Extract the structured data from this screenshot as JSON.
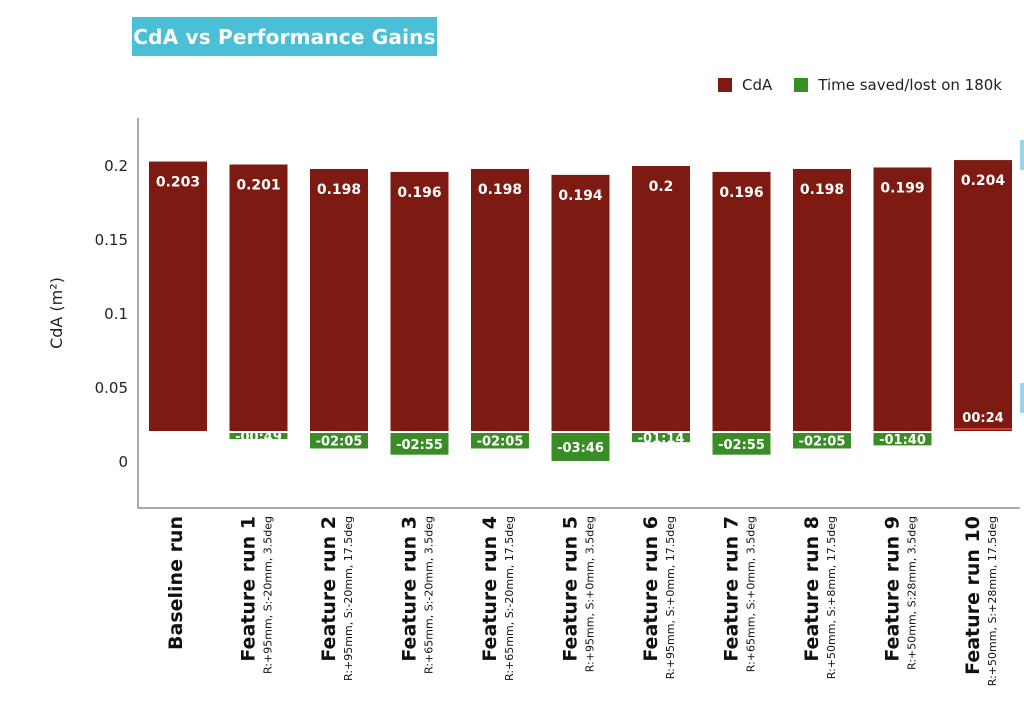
{
  "chart_data": {
    "type": "bar",
    "title": "CdA vs Performance Gains",
    "ylabel": "CdA (m²)",
    "ylim": [
      -0.03,
      0.235
    ],
    "yticks": [
      0,
      0.05,
      0.1,
      0.15,
      0.2
    ],
    "ytick_labels": [
      "0",
      "0.05",
      "0.1",
      "0.15",
      "0.2"
    ],
    "grid": false,
    "legend_position": "top-right",
    "categories": [
      {
        "main": "Baseline run",
        "sub": ""
      },
      {
        "main": "Feature run 1",
        "sub": "R:+95mm, S:-20mm, 3.5deg"
      },
      {
        "main": "Feature run 2",
        "sub": "R:+95mm, S:-20mm, 17.5deg"
      },
      {
        "main": "Feature run 3",
        "sub": "R:+65mm, S:-20mm, 3.5deg"
      },
      {
        "main": "Feature run 4",
        "sub": "R:+65mm, S:-20mm, 17.5deg"
      },
      {
        "main": "Feature run 5",
        "sub": "R:+95mm, S:+0mm, 3.5deg"
      },
      {
        "main": "Feature run 6",
        "sub": "R:+95mm, S:+0mm, 17.5deg"
      },
      {
        "main": "Feature run 7",
        "sub": "R:+65mm, S:+0mm, 3.5deg"
      },
      {
        "main": "Feature run 8",
        "sub": "R:+50mm, S:+8mm, 17.5deg"
      },
      {
        "main": "Feature run 9",
        "sub": "R:+50mm, S:28mm, 3.5deg"
      },
      {
        "main": "Feature run 10",
        "sub": "R:+50mm, S:+28mm, 17.5deg"
      }
    ],
    "series": [
      {
        "name": "CdA",
        "color": "#7d1a12",
        "values": [
          0.203,
          0.201,
          0.198,
          0.196,
          0.198,
          0.194,
          0.2,
          0.196,
          0.198,
          0.199,
          0.204
        ],
        "labels": [
          "0.203",
          "0.201",
          "0.198",
          "0.196",
          "0.198",
          "0.194",
          "0.2",
          "0.196",
          "0.198",
          "0.199",
          "0.204"
        ]
      },
      {
        "name": "Time saved/lost on 180k",
        "color": "#3a8c27",
        "values_seconds": [
          0,
          -49,
          -125,
          -175,
          -125,
          -226,
          -74,
          -175,
          -125,
          -100,
          24
        ],
        "labels": [
          "",
          "-00:49",
          "-02:05",
          "-02:55",
          "-02:05",
          "-03:46",
          "-01:14",
          "-02:55",
          "-02:05",
          "-01:40",
          "00:24"
        ]
      }
    ]
  }
}
